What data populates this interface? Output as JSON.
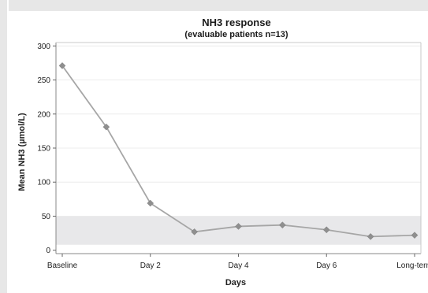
{
  "chart_data": {
    "type": "line",
    "title": "NH3 response",
    "subtitle": "(evaluable patients n=13)",
    "xlabel": "Days",
    "ylabel": "Mean NH3 (µmol/L)",
    "categories": [
      "Baseline",
      "",
      "Day 2",
      "",
      "Day 4",
      "",
      "Day 6",
      "",
      "Long-term"
    ],
    "x_tick_labels": [
      "Baseline",
      "Day 2",
      "Day 4",
      "Day 6",
      "Long-term"
    ],
    "y_ticks": [
      0,
      50,
      100,
      150,
      200,
      250,
      300
    ],
    "ylim": [
      -5,
      305
    ],
    "reference_band": [
      8,
      50
    ],
    "series": [
      {
        "values": [
          271,
          181,
          69,
          27,
          35,
          37,
          30,
          20,
          22
        ]
      }
    ],
    "grid": true,
    "colors": {
      "line": "#a6a6a6",
      "marker": "#8f8f8f",
      "band": "#e8e8ea",
      "grid": "#ececec",
      "plot_background": "#ffffff",
      "page_background": "#e7e7e7"
    }
  }
}
